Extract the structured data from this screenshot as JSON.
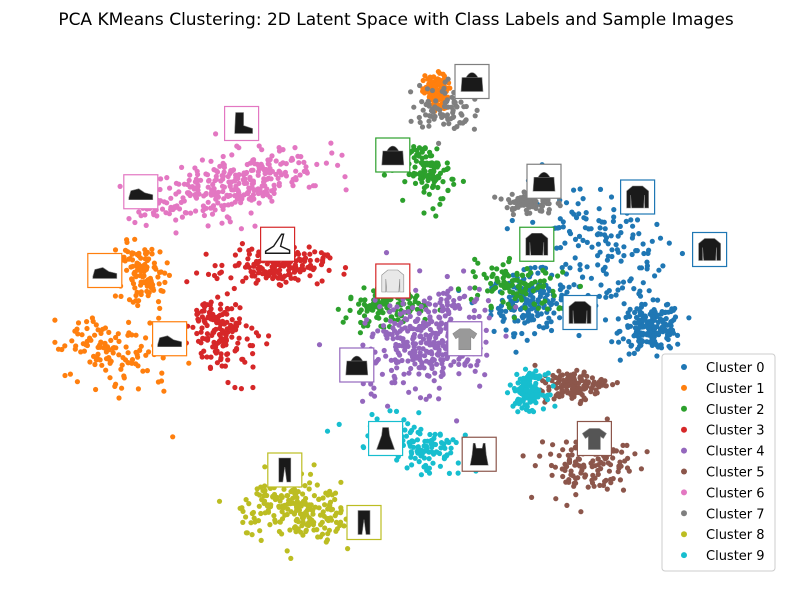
{
  "chart_data": {
    "type": "scatter",
    "title": "PCA KMeans Clustering: 2D Latent Space with Class Labels and Sample Images",
    "xlabel": "",
    "ylabel": "",
    "axes_visible": false,
    "grid": false,
    "xlim": [
      0,
      100
    ],
    "ylim": [
      0,
      100
    ],
    "legend_position": "bottom-right",
    "series": [
      {
        "name": "Cluster 0",
        "color": "#1f77b4",
        "n": 520,
        "regions": [
          [
            78,
            62,
            9,
            13,
            0.3
          ],
          [
            68,
            52,
            5,
            5,
            0.1
          ],
          [
            85,
            47,
            4,
            4,
            0.1
          ]
        ]
      },
      {
        "name": "Cluster 1",
        "color": "#ff7f0e",
        "n": 350,
        "regions": [
          [
            10,
            42,
            6,
            8,
            0.6
          ],
          [
            14,
            58,
            3,
            6,
            0.3
          ],
          [
            55,
            92,
            1.5,
            3,
            0.05
          ]
        ]
      },
      {
        "name": "Cluster 2",
        "color": "#2ca02c",
        "n": 330,
        "regions": [
          [
            66,
            55,
            6,
            4,
            -0.3
          ],
          [
            54,
            77,
            3,
            5,
            0.2
          ],
          [
            48,
            51,
            5,
            3,
            0
          ]
        ]
      },
      {
        "name": "Cluster 3",
        "color": "#d62728",
        "n": 330,
        "regions": [
          [
            25,
            46,
            4,
            8,
            0.2
          ],
          [
            33,
            59,
            6,
            3,
            0
          ]
        ]
      },
      {
        "name": "Cluster 4",
        "color": "#9467bd",
        "n": 360,
        "regions": [
          [
            54,
            45,
            7,
            10,
            -0.5
          ]
        ]
      },
      {
        "name": "Cluster 5",
        "color": "#8c564b",
        "n": 260,
        "regions": [
          [
            76,
            21,
            6,
            5,
            0.3
          ],
          [
            74,
            36,
            4,
            2.5,
            0.2
          ]
        ]
      },
      {
        "name": "Cluster 6",
        "color": "#e377c2",
        "n": 330,
        "regions": [
          [
            26,
            74,
            12,
            5,
            0.4
          ]
        ]
      },
      {
        "name": "Cluster 7",
        "color": "#7f7f7f",
        "n": 170,
        "regions": [
          [
            56,
            89,
            4,
            4,
            -0.3
          ],
          [
            68,
            71,
            3,
            2,
            0
          ]
        ]
      },
      {
        "name": "Cluster 8",
        "color": "#bcbd22",
        "n": 230,
        "regions": [
          [
            36,
            12,
            7,
            5,
            -0.4
          ]
        ]
      },
      {
        "name": "Cluster 9",
        "color": "#17becf",
        "n": 270,
        "regions": [
          [
            52,
            25,
            8,
            4,
            -0.4
          ],
          [
            68,
            35,
            2,
            3,
            0
          ]
        ]
      }
    ],
    "sample_images": [
      {
        "x": 60,
        "y": 94,
        "cluster": 7,
        "item": "bag"
      },
      {
        "x": 70,
        "y": 75,
        "cluster": 7,
        "item": "bag"
      },
      {
        "x": 49,
        "y": 80,
        "cluster": 2,
        "item": "bag"
      },
      {
        "x": 28,
        "y": 86,
        "cluster": 6,
        "item": "ankle-boot"
      },
      {
        "x": 14,
        "y": 73,
        "cluster": 6,
        "item": "sneaker"
      },
      {
        "x": 33,
        "y": 63,
        "cluster": 3,
        "item": "sandal"
      },
      {
        "x": 9,
        "y": 58,
        "cluster": 1,
        "item": "sneaker"
      },
      {
        "x": 18,
        "y": 45,
        "cluster": 1,
        "item": "sneaker"
      },
      {
        "x": 83,
        "y": 72,
        "cluster": 0,
        "item": "pullover"
      },
      {
        "x": 93,
        "y": 62,
        "cluster": 0,
        "item": "coat"
      },
      {
        "x": 69,
        "y": 63,
        "cluster": 2,
        "item": "pullover"
      },
      {
        "x": 49,
        "y": 56,
        "cluster": 3,
        "item": "shirt"
      },
      {
        "x": 75,
        "y": 50,
        "cluster": 0,
        "item": "pullover"
      },
      {
        "x": 59,
        "y": 45,
        "cluster": 4,
        "item": "tshirt"
      },
      {
        "x": 44,
        "y": 40,
        "cluster": 4,
        "item": "bag"
      },
      {
        "x": 48,
        "y": 26,
        "cluster": 9,
        "item": "dress"
      },
      {
        "x": 61,
        "y": 23,
        "cluster": 5,
        "item": "top"
      },
      {
        "x": 77,
        "y": 26,
        "cluster": 5,
        "item": "tshirt"
      },
      {
        "x": 34,
        "y": 20,
        "cluster": 8,
        "item": "trouser"
      },
      {
        "x": 45,
        "y": 10,
        "cluster": 8,
        "item": "trouser"
      }
    ]
  }
}
